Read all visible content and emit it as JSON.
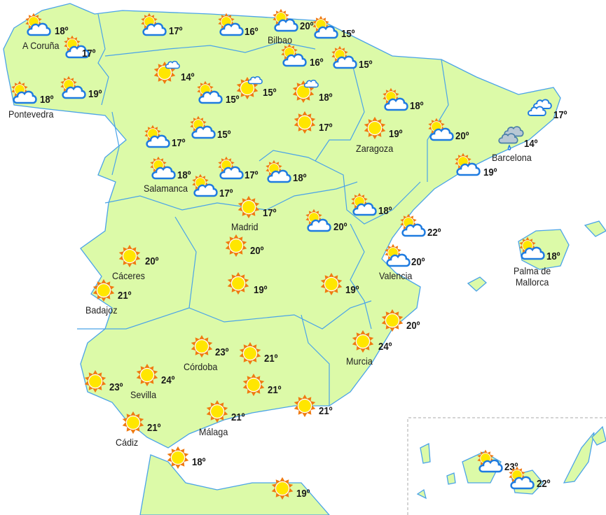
{
  "colors": {
    "land": "#dcfaa8",
    "border": "#4aa3e8",
    "sea": "#ffffff",
    "sun": "#ffe600",
    "sun_rays": "#f07a10",
    "cloud_outline": "#1e7be0",
    "rain_cloud": "#b8c8d4"
  },
  "degree_symbol": "º",
  "stations": [
    {
      "icon": "partly-cloudy",
      "temp": "18º",
      "city": "A Coruña"
    },
    {
      "icon": "partly-cloudy",
      "temp": "17º"
    },
    {
      "icon": "partly-cloudy",
      "temp": "18º",
      "city": "Pontevedra"
    },
    {
      "icon": "partly-cloudy",
      "temp": "19º"
    },
    {
      "icon": "partly-cloudy",
      "temp": "17º"
    },
    {
      "icon": "partly-cloudy",
      "temp": "16º"
    },
    {
      "icon": "partly-cloudy",
      "temp": "20º",
      "city": "Bilbao"
    },
    {
      "icon": "partly-cloudy",
      "temp": "15º"
    },
    {
      "icon": "sunny-small-cloud",
      "temp": "14º"
    },
    {
      "icon": "partly-cloudy",
      "temp": "16º"
    },
    {
      "icon": "partly-cloudy",
      "temp": "15º"
    },
    {
      "icon": "partly-cloudy",
      "temp": "15º"
    },
    {
      "icon": "sunny-small-cloud",
      "temp": "15º"
    },
    {
      "icon": "sunny-small-cloud",
      "temp": "18º"
    },
    {
      "icon": "sunny",
      "temp": "17º"
    },
    {
      "icon": "partly-cloudy",
      "temp": "18º"
    },
    {
      "icon": "partly-cloudy",
      "temp": "17º"
    },
    {
      "icon": "partly-cloudy",
      "temp": "15º"
    },
    {
      "icon": "sunny",
      "temp": "19º",
      "city": "Zaragoza"
    },
    {
      "icon": "partly-cloudy",
      "temp": "20º"
    },
    {
      "icon": "cloudy",
      "temp": "17º"
    },
    {
      "icon": "rain",
      "temp": "14º",
      "city": "Barcelona"
    },
    {
      "icon": "partly-cloudy",
      "temp": "18º",
      "city": "Salamanca"
    },
    {
      "icon": "partly-cloudy",
      "temp": "17º"
    },
    {
      "icon": "partly-cloudy",
      "temp": "18º"
    },
    {
      "icon": "partly-cloudy",
      "temp": "17º"
    },
    {
      "icon": "partly-cloudy",
      "temp": "19º"
    },
    {
      "icon": "sunny",
      "temp": "17º",
      "city": "Madrid"
    },
    {
      "icon": "partly-cloudy",
      "temp": "18º"
    },
    {
      "icon": "partly-cloudy",
      "temp": "20º"
    },
    {
      "icon": "partly-cloudy",
      "temp": "22º"
    },
    {
      "icon": "sunny",
      "temp": "20º"
    },
    {
      "icon": "sunny",
      "temp": "20º",
      "city": "Cáceres"
    },
    {
      "icon": "partly-cloudy",
      "temp": "20º",
      "city": "Valencia"
    },
    {
      "icon": "partly-cloudy",
      "temp": "18º",
      "city": "Palma de Mallorca"
    },
    {
      "icon": "sunny",
      "temp": "21º",
      "city": "Badajoz"
    },
    {
      "icon": "sunny",
      "temp": "19º"
    },
    {
      "icon": "sunny",
      "temp": "19º"
    },
    {
      "icon": "sunny",
      "temp": "20º"
    },
    {
      "icon": "sunny",
      "temp": "23º",
      "city": "Córdoba"
    },
    {
      "icon": "sunny",
      "temp": "21º"
    },
    {
      "icon": "sunny",
      "temp": "24º",
      "city": "Murcia"
    },
    {
      "icon": "sunny",
      "temp": "23º"
    },
    {
      "icon": "sunny",
      "temp": "24º",
      "city": "Sevilla"
    },
    {
      "icon": "sunny",
      "temp": "21º"
    },
    {
      "icon": "sunny",
      "temp": "21º",
      "city": "Málaga"
    },
    {
      "icon": "sunny",
      "temp": "21º"
    },
    {
      "icon": "sunny",
      "temp": "21º",
      "city": "Cádiz"
    },
    {
      "icon": "sunny",
      "temp": "18º"
    },
    {
      "icon": "sunny",
      "temp": "19º"
    },
    {
      "icon": "partly-cloudy",
      "temp": "23º"
    },
    {
      "icon": "partly-cloudy",
      "temp": "22º"
    }
  ]
}
